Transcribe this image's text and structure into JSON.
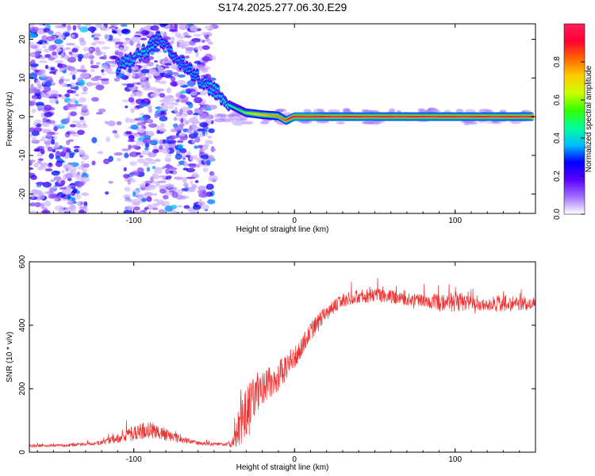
{
  "title": "S174.2025.277.06.30.E29",
  "chart_data": [
    {
      "type": "heatmap",
      "xlabel": "Height of straight line (km)",
      "ylabel": "Frequency (Hz)",
      "xlim": [
        -165,
        150
      ],
      "ylim": [
        -25,
        24
      ],
      "x_ticks": [
        -100,
        0,
        100
      ],
      "y_ticks": [
        -20,
        -10,
        0,
        10,
        20
      ],
      "colorbar": {
        "label": "Normalized spectral amplitude",
        "range": [
          0,
          1
        ],
        "ticks": [
          0.0,
          0.2,
          0.4,
          0.6,
          0.8
        ],
        "stops": [
          "#ffffff",
          "#a070ff",
          "#5a00ff",
          "#0000ff",
          "#00bfff",
          "#00ff99",
          "#33ff00",
          "#ccff00",
          "#ffcc00",
          "#ff6600",
          "#ff0033",
          "#ff1f5a"
        ]
      },
      "ridge": {
        "x": [
          -110,
          -95,
          -85,
          -60,
          -45,
          -40,
          -35,
          -30,
          -20,
          -10,
          -5,
          0,
          10,
          20,
          50,
          90,
          110,
          148
        ],
        "y": [
          13,
          16,
          20,
          10,
          5,
          3,
          2,
          1,
          0.5,
          0.2,
          -1,
          0,
          0,
          0,
          0,
          0,
          0,
          0
        ],
        "amplitude": [
          0.35,
          0.4,
          0.35,
          0.35,
          0.4,
          0.45,
          0.5,
          0.6,
          0.75,
          0.8,
          0.85,
          0.95,
          0.95,
          0.9,
          0.9,
          0.9,
          0.9,
          0.9
        ]
      },
      "noise_region": {
        "x_range": [
          -165,
          -50
        ],
        "gap_x": [
          -130,
          -105
        ]
      }
    },
    {
      "type": "line",
      "xlabel": "Height of straight line (km)",
      "ylabel": "SNR (10 * v/v)",
      "xlim": [
        -165,
        150
      ],
      "ylim": [
        0,
        600
      ],
      "x_ticks": [
        -100,
        0,
        100
      ],
      "y_ticks": [
        0,
        200,
        400,
        600
      ],
      "color": "#ee3333",
      "series": [
        {
          "name": "SNR",
          "x": [
            -165,
            -140,
            -120,
            -110,
            -100,
            -90,
            -80,
            -70,
            -60,
            -50,
            -42,
            -38,
            -35,
            -30,
            -25,
            -20,
            -15,
            -10,
            -5,
            0,
            5,
            10,
            15,
            20,
            25,
            30,
            40,
            50,
            60,
            70,
            80,
            90,
            100,
            110,
            120,
            130,
            140,
            150
          ],
          "values": [
            20,
            22,
            30,
            45,
            60,
            70,
            55,
            40,
            28,
            25,
            25,
            30,
            70,
            120,
            180,
            200,
            220,
            240,
            270,
            300,
            340,
            380,
            410,
            440,
            460,
            480,
            490,
            495,
            490,
            480,
            480,
            470,
            475,
            470,
            465,
            470,
            465,
            470
          ],
          "spike_amplitude": [
            8,
            8,
            10,
            25,
            40,
            45,
            35,
            18,
            10,
            8,
            8,
            30,
            100,
            140,
            120,
            90,
            90,
            80,
            70,
            60,
            60,
            50,
            50,
            40,
            35,
            35,
            35,
            35,
            35,
            35,
            35,
            45,
            55,
            35,
            35,
            45,
            35,
            35
          ]
        }
      ]
    }
  ]
}
